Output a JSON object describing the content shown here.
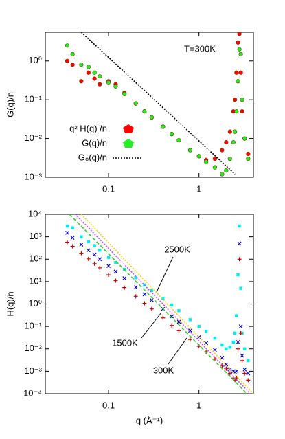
{
  "chart_data": [
    {
      "type": "scatter",
      "log_x": true,
      "log_y": true,
      "ylabel": "G(q)/n",
      "xlim": [
        0.02,
        4
      ],
      "ylim": [
        0.001,
        5.5
      ],
      "xticks": [
        0.1,
        1
      ],
      "yticks": [
        {
          "value": 0.001,
          "label": "10⁻³"
        },
        {
          "value": 0.01,
          "label": "10⁻²"
        },
        {
          "value": 0.1,
          "label": "10⁻¹"
        },
        {
          "value": 1,
          "label": "10⁰"
        }
      ],
      "annotations": [
        "T=300K"
      ],
      "legend": "lower left",
      "series": [
        {
          "name": "q² H(q) /n",
          "color": "#ff0000",
          "marker": "circle",
          "x": [
            0.035,
            0.04,
            0.05,
            0.06,
            0.07,
            0.08,
            0.1,
            0.12,
            0.15,
            0.2,
            0.25,
            0.3,
            0.4,
            0.5,
            0.6,
            0.8,
            1.0,
            1.2,
            1.5,
            1.8,
            2.0,
            2.2,
            2.4,
            2.5,
            2.6,
            2.7,
            2.8,
            2.9,
            3.0,
            3.2,
            3.5
          ],
          "values": [
            1.0,
            0.8,
            0.3,
            0.5,
            0.35,
            0.25,
            0.3,
            0.25,
            0.15,
            0.08,
            0.05,
            0.035,
            0.02,
            0.013,
            0.009,
            0.005,
            0.0035,
            0.0028,
            0.003,
            0.005,
            0.008,
            0.015,
            0.05,
            0.1,
            0.5,
            3,
            5,
            0.5,
            0.05,
            0.01,
            0.004
          ]
        },
        {
          "name": "G(q)/n",
          "color": "#22ee22",
          "marker": "circle",
          "x": [
            0.035,
            0.04,
            0.05,
            0.06,
            0.07,
            0.08,
            0.1,
            0.12,
            0.15,
            0.2,
            0.25,
            0.3,
            0.4,
            0.5,
            0.6,
            0.8,
            1.0,
            1.2,
            1.5,
            1.8,
            2.0,
            2.2,
            2.4,
            2.5,
            2.6,
            2.7,
            2.8,
            2.9,
            3.0,
            3.2,
            3.5
          ],
          "values": [
            2.5,
            1.5,
            0.8,
            0.7,
            0.5,
            0.4,
            0.28,
            0.22,
            0.14,
            0.08,
            0.05,
            0.035,
            0.02,
            0.013,
            0.009,
            0.005,
            0.0035,
            0.0025,
            0.0018,
            0.0012,
            0.0015,
            0.003,
            0.008,
            0.015,
            0.05,
            0.3,
            2.0,
            1.5,
            0.1,
            0.01,
            0.003
          ]
        },
        {
          "name": "G₀(q)/n",
          "color": "#000000",
          "marker": "line",
          "style": "dotted",
          "x": [
            0.05,
            2.5
          ],
          "values": [
            5.5,
            0.0012
          ]
        }
      ]
    },
    {
      "type": "scatter",
      "log_x": true,
      "log_y": true,
      "xlabel": "q (Å⁻¹)",
      "ylabel": "H(q)/n",
      "xlim": [
        0.02,
        4
      ],
      "ylim": [
        0.0001,
        10000
      ],
      "xticks": [
        0.1,
        1
      ],
      "yticks": [
        {
          "value": 0.0001,
          "label": "10⁻⁴"
        },
        {
          "value": 0.001,
          "label": "10⁻³"
        },
        {
          "value": 0.01,
          "label": "10⁻²"
        },
        {
          "value": 0.1,
          "label": "10⁻¹"
        },
        {
          "value": 1,
          "label": "10⁰"
        },
        {
          "value": 10,
          "label": "10¹"
        },
        {
          "value": 100,
          "label": "10²"
        },
        {
          "value": 1000,
          "label": "10³"
        },
        {
          "value": 10000,
          "label": "10⁴"
        }
      ],
      "annotations": [
        "2500K",
        "1500K",
        "300K"
      ],
      "series": [
        {
          "color": "#00eeee",
          "marker": "square",
          "x": [
            0.035,
            0.04,
            0.05,
            0.06,
            0.07,
            0.08,
            0.1,
            0.12,
            0.15,
            0.2,
            0.25,
            0.3,
            0.4,
            0.5,
            0.6,
            0.8,
            1.0,
            1.2,
            1.5,
            1.8,
            2.0,
            2.2,
            2.4,
            2.5,
            2.6,
            2.7,
            2.8,
            2.9,
            3.0,
            3.2,
            3.5
          ],
          "values": [
            3000,
            2500,
            1000,
            600,
            400,
            250,
            120,
            70,
            35,
            15,
            7,
            4,
            1.8,
            0.9,
            0.5,
            0.2,
            0.1,
            0.06,
            0.03,
            0.015,
            0.01,
            0.012,
            0.02,
            0.05,
            0.3,
            20,
            3000,
            5,
            0.05,
            0.01,
            0.003
          ]
        },
        {
          "color": "#0000cc",
          "marker": "cross",
          "x": [
            0.035,
            0.04,
            0.05,
            0.06,
            0.07,
            0.08,
            0.1,
            0.12,
            0.15,
            0.2,
            0.25,
            0.3,
            0.4,
            0.5,
            0.6,
            0.8,
            1.0,
            1.2,
            1.5,
            1.8,
            2.0,
            2.2,
            2.4,
            2.5,
            2.6,
            2.7,
            2.8,
            2.9,
            3.0,
            3.2,
            3.5
          ],
          "values": [
            1500,
            900,
            450,
            250,
            160,
            100,
            50,
            28,
            14,
            5.5,
            2.7,
            1.5,
            0.6,
            0.28,
            0.16,
            0.065,
            0.033,
            0.018,
            0.009,
            0.004,
            0.002,
            0.0012,
            0.001,
            0.0009,
            0.001,
            0.02,
            500,
            0.1,
            0.005,
            0.0012,
            0.0008
          ]
        },
        {
          "color": "#cc0000",
          "marker": "plus",
          "x": [
            0.035,
            0.04,
            0.05,
            0.06,
            0.07,
            0.08,
            0.1,
            0.12,
            0.15,
            0.2,
            0.25,
            0.3,
            0.4,
            0.5,
            0.6,
            0.8,
            1.0,
            1.2,
            1.5,
            1.8,
            2.0,
            2.2,
            2.4,
            2.5,
            2.6,
            2.7,
            2.8,
            2.9,
            3.0,
            3.2,
            3.5
          ],
          "values": [
            574,
            376,
            184,
            103,
            63,
            41,
            20,
            11,
            5.4,
            2.2,
            1.07,
            0.6,
            0.24,
            0.11,
            0.065,
            0.026,
            0.013,
            0.0073,
            0.0035,
            0.0018,
            0.0013,
            0.0008,
            0.0005,
            0.0004,
            0.0005,
            0.01,
            100,
            0.05,
            0.003,
            0.0008,
            0.0004
          ]
        },
        {
          "color": "#33cc33",
          "marker": "line",
          "style": "dashed",
          "x": [
            0.037,
            3.4
          ],
          "values": [
            10000,
            0.0001
          ]
        },
        {
          "color": "#cc44ff",
          "marker": "line",
          "style": "dotted",
          "x": [
            0.043,
            3.7
          ],
          "values": [
            10000,
            0.0001
          ]
        },
        {
          "color": "#ffcc00",
          "marker": "line",
          "style": "dotted",
          "x": [
            0.05,
            4.0
          ],
          "values": [
            10000,
            0.0001
          ]
        }
      ]
    }
  ]
}
